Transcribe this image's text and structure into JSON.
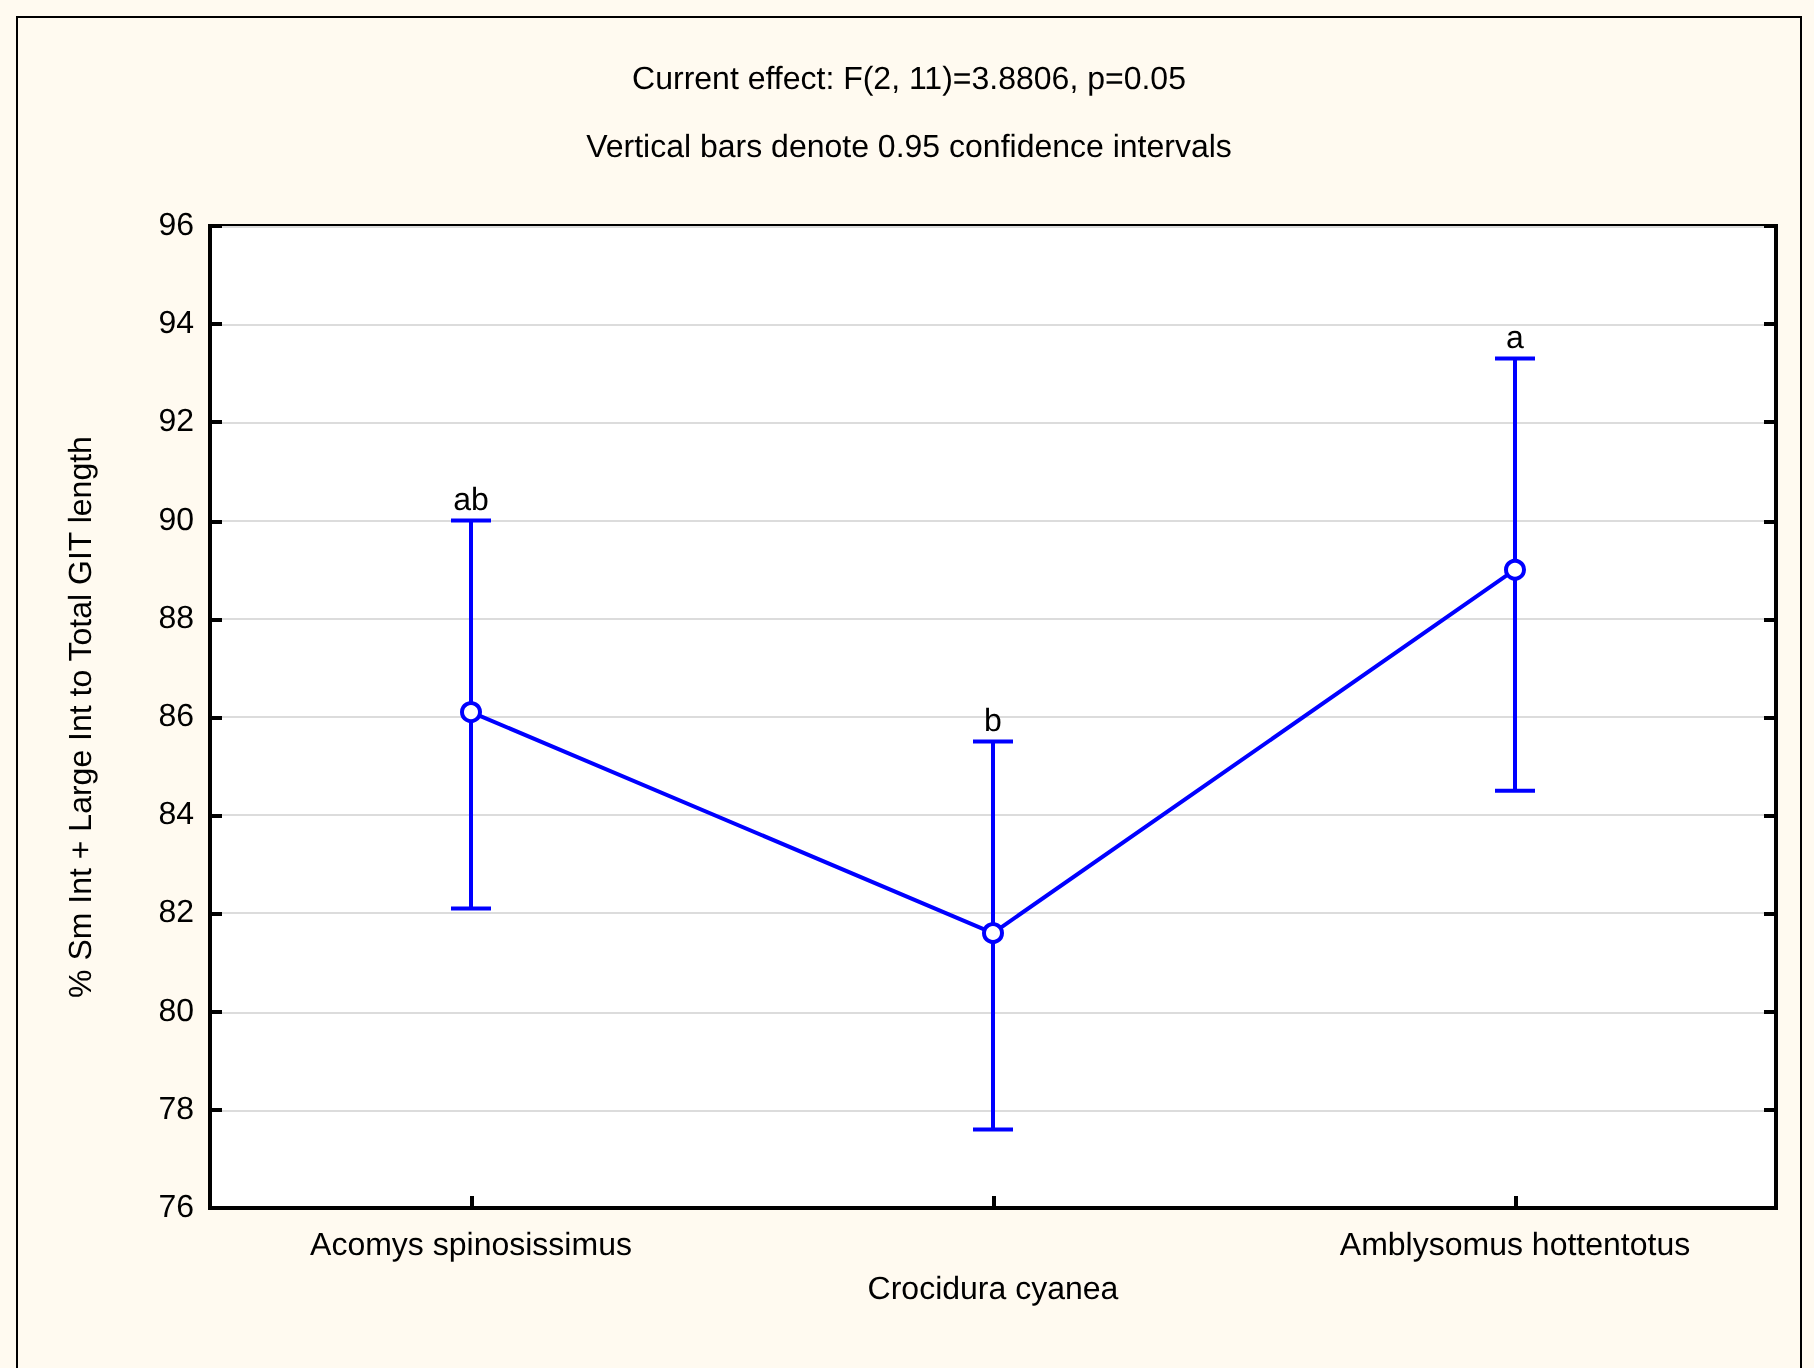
{
  "chart_data": {
    "type": "line",
    "title": "Current effect: F(2, 11)=3.8806, p=0.05",
    "subtitle": "Vertical bars denote 0.95 confidence intervals",
    "ylabel": "% Sm Int + Large Int to Total GIT length",
    "categories": [
      "Acomys spinosissimus",
      "Crocidura cyanea",
      "Amblysomus hottentotus"
    ],
    "series": [
      {
        "color": "#0000ff",
        "values": [
          86.1,
          81.6,
          89.0
        ],
        "errors": [
          [
            82.1,
            90.0
          ],
          [
            77.6,
            85.5
          ],
          [
            84.5,
            93.3
          ]
        ]
      }
    ],
    "ylim": [
      76,
      96
    ],
    "yticks": [
      76,
      78,
      80,
      82,
      84,
      86,
      88,
      90,
      92,
      94,
      96
    ],
    "annotations": [
      {
        "text": "ab",
        "x": "Acomys spinosissimus",
        "y": 90.0
      },
      {
        "text": "b",
        "x": "Crocidura cyanea",
        "y": 85.5
      },
      {
        "text": "a",
        "x": "Amblysomus hottentotus",
        "y": 93.3
      }
    ],
    "grid": true,
    "marker": "circle",
    "line_style": "solid"
  }
}
